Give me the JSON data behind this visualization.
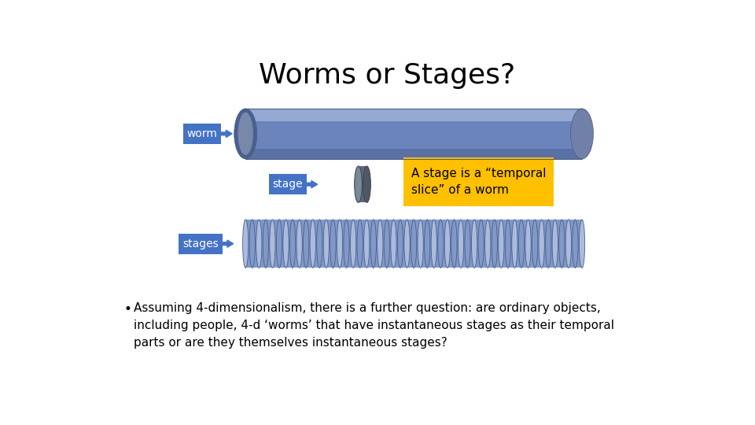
{
  "title": "Worms or Stages?",
  "title_fontsize": 26,
  "background_color": "#ffffff",
  "worm_label": "worm",
  "stage_label": "stage",
  "stages_label": "stages",
  "annotation_text": "A stage is a “temporal\nslice” of a worm",
  "bullet_text": "Assuming 4-dimensionalism, there is a further question: are ordinary objects,\nincluding people, 4-d ‘worms’ that have instantaneous stages as their temporal\nparts or are they themselves instantaneous stages?",
  "label_box_color": "#4472c4",
  "label_text_color": "#ffffff",
  "annotation_box_color": "#ffc000",
  "annotation_text_color": "#000000",
  "worm_body_color_main": "#6b84bb",
  "worm_body_color_light": "#a0b4d8",
  "worm_body_color_dark": "#4a5f90",
  "worm_end_color": "#7080a8",
  "stage_slice_color": "#5a6a8a",
  "stages_slice_color": "#8099c8",
  "stages_slice_border": "#4a5f8a",
  "stages_slice_light": "#aabbdd"
}
